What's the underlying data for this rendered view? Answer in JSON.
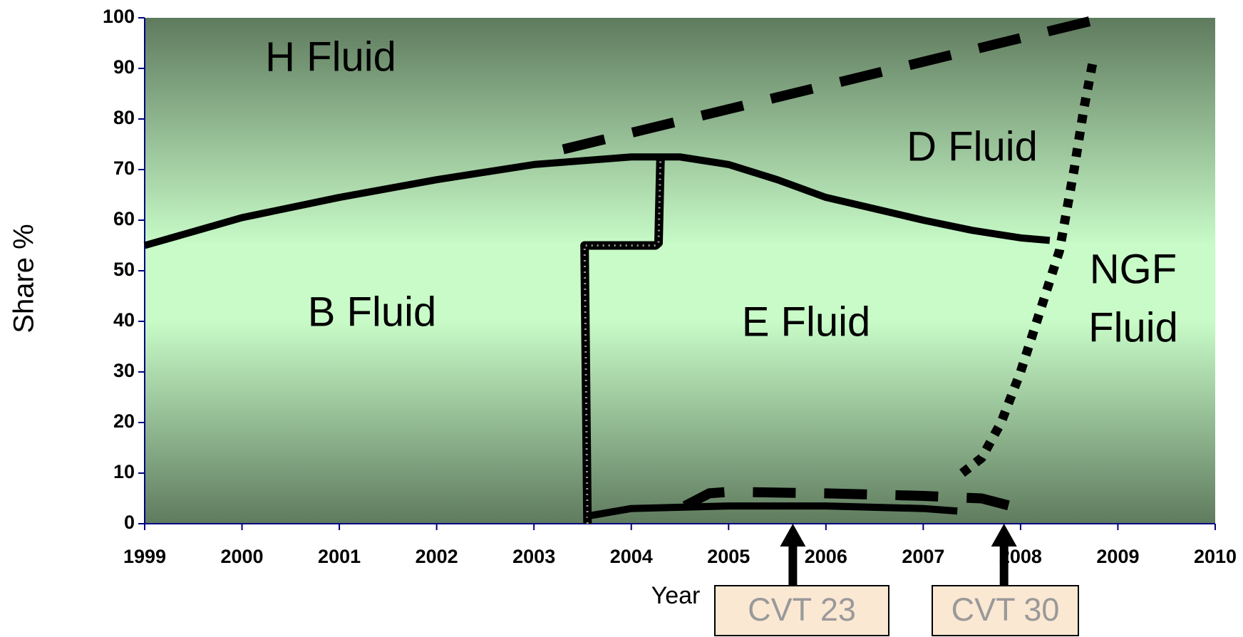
{
  "chart_data": {
    "type": "line",
    "ylabel": "Share %",
    "xlabel": "Year",
    "xlim": [
      1999,
      2010
    ],
    "xticks": [
      1999,
      2000,
      2001,
      2002,
      2003,
      2004,
      2005,
      2006,
      2007,
      2008,
      2009,
      2010
    ],
    "ylim": [
      0,
      100
    ],
    "yticks": [
      0,
      10,
      20,
      30,
      40,
      50,
      60,
      70,
      80,
      90,
      100
    ],
    "series": [
      {
        "color": "#000000",
        "style": "solid",
        "x": [
          1999,
          2000,
          2001,
          2002,
          2003,
          2004,
          2004.5,
          2005,
          2005.5,
          2006,
          2007,
          2007.5,
          2008,
          2008.3
        ],
        "y": [
          55,
          60.5,
          64.5,
          68,
          71,
          72.5,
          72.5,
          71,
          68,
          64.5,
          60,
          58,
          56.5,
          56
        ]
      },
      {
        "color": "#000000",
        "style": "dashed",
        "x": [
          2003.3,
          2008.75
        ],
        "y": [
          74,
          99.5
        ]
      },
      {
        "color": "#000000",
        "style": "step",
        "x": [
          2003.55,
          2003.52,
          2004.25,
          2004.28,
          2004.3
        ],
        "y": [
          0,
          55,
          55,
          55.5,
          72
        ]
      },
      {
        "color": "#000000",
        "style": "dotted",
        "x": [
          2007.4,
          2007.6,
          2007.8,
          2008,
          2008.2,
          2008.4,
          2008.55,
          2008.65,
          2008.75
        ],
        "y": [
          10,
          13,
          20,
          30,
          42,
          54,
          70,
          82,
          92
        ]
      },
      {
        "color": "#000000",
        "style": "solid",
        "x": [
          2003.55,
          2004,
          2005,
          2006,
          2007,
          2007.35
        ],
        "y": [
          1.5,
          3,
          3.5,
          3.5,
          3,
          2.5
        ]
      },
      {
        "color": "#000000",
        "style": "dashed",
        "x": [
          2004.55,
          2004.8,
          2005,
          2006,
          2007,
          2007.6,
          2008
        ],
        "y": [
          3.5,
          6,
          6.3,
          6,
          5.5,
          5,
          3
        ]
      }
    ],
    "annotations": [
      {
        "lines": [
          "H Fluid"
        ]
      },
      {
        "lines": [
          "B Fluid"
        ]
      },
      {
        "lines": [
          "E Fluid"
        ]
      },
      {
        "lines": [
          "D Fluid"
        ]
      },
      {
        "lines": [
          "NGF",
          "Fluid"
        ]
      }
    ],
    "callouts": [
      {
        "text": "CVT 23",
        "x": 2005.66
      },
      {
        "text": "CVT 30",
        "x": 2007.83
      }
    ]
  }
}
